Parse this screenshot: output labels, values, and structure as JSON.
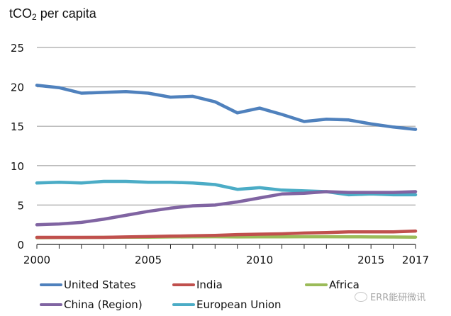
{
  "chart_data": {
    "type": "line",
    "title": "",
    "ylabel": "tCO",
    "ylabel_sub": "2",
    "ylabel_rest": " per capita",
    "xlabel": "",
    "x": [
      2000,
      2001,
      2002,
      2003,
      2004,
      2005,
      2006,
      2007,
      2008,
      2009,
      2010,
      2011,
      2012,
      2013,
      2014,
      2015,
      2016,
      2017
    ],
    "xlim": [
      2000,
      2017
    ],
    "ylim": [
      0,
      25
    ],
    "yticks": [
      0,
      5,
      10,
      15,
      20,
      25
    ],
    "xtick_labels": [
      {
        "value": 2000,
        "label": "2000"
      },
      {
        "value": 2005,
        "label": "2005"
      },
      {
        "value": 2010,
        "label": "2010"
      },
      {
        "value": 2015,
        "label": "2015"
      },
      {
        "value": 2017,
        "label": "2017"
      }
    ],
    "grid": "horizontal",
    "legend_position": "bottom",
    "series": [
      {
        "name": "United States",
        "color": "#4f81bd",
        "values": [
          20.2,
          19.9,
          19.2,
          19.3,
          19.4,
          19.2,
          18.7,
          18.8,
          18.1,
          16.7,
          17.3,
          16.5,
          15.6,
          15.9,
          15.8,
          15.3,
          14.9,
          14.6
        ]
      },
      {
        "name": "India",
        "color": "#c0504d",
        "values": [
          0.9,
          0.9,
          0.9,
          0.9,
          0.95,
          1.0,
          1.05,
          1.1,
          1.15,
          1.25,
          1.3,
          1.35,
          1.45,
          1.5,
          1.6,
          1.6,
          1.6,
          1.7
        ]
      },
      {
        "name": "Africa",
        "color": "#9bbb59",
        "values": [
          0.85,
          0.87,
          0.88,
          0.9,
          0.92,
          0.93,
          0.95,
          0.97,
          0.98,
          0.95,
          0.97,
          0.97,
          0.98,
          0.98,
          0.97,
          0.95,
          0.94,
          0.93
        ]
      },
      {
        "name": "China (Region)",
        "color": "#8064a2",
        "values": [
          2.5,
          2.6,
          2.8,
          3.2,
          3.7,
          4.2,
          4.6,
          4.9,
          5.0,
          5.4,
          5.9,
          6.4,
          6.5,
          6.7,
          6.6,
          6.6,
          6.6,
          6.7
        ]
      },
      {
        "name": "European Union",
        "color": "#4bacc6",
        "values": [
          7.8,
          7.9,
          7.8,
          8.0,
          8.0,
          7.9,
          7.9,
          7.8,
          7.6,
          7.0,
          7.2,
          6.9,
          6.8,
          6.7,
          6.3,
          6.4,
          6.3,
          6.3
        ]
      }
    ]
  },
  "legend": {
    "items": [
      {
        "label": "United States",
        "color": "#4f81bd"
      },
      {
        "label": "India",
        "color": "#c0504d"
      },
      {
        "label": "Africa",
        "color": "#9bbb59"
      },
      {
        "label": "China (Region)",
        "color": "#8064a2"
      },
      {
        "label": "European Union",
        "color": "#4bacc6"
      }
    ]
  },
  "watermark": {
    "text": "ERR能研微讯"
  }
}
